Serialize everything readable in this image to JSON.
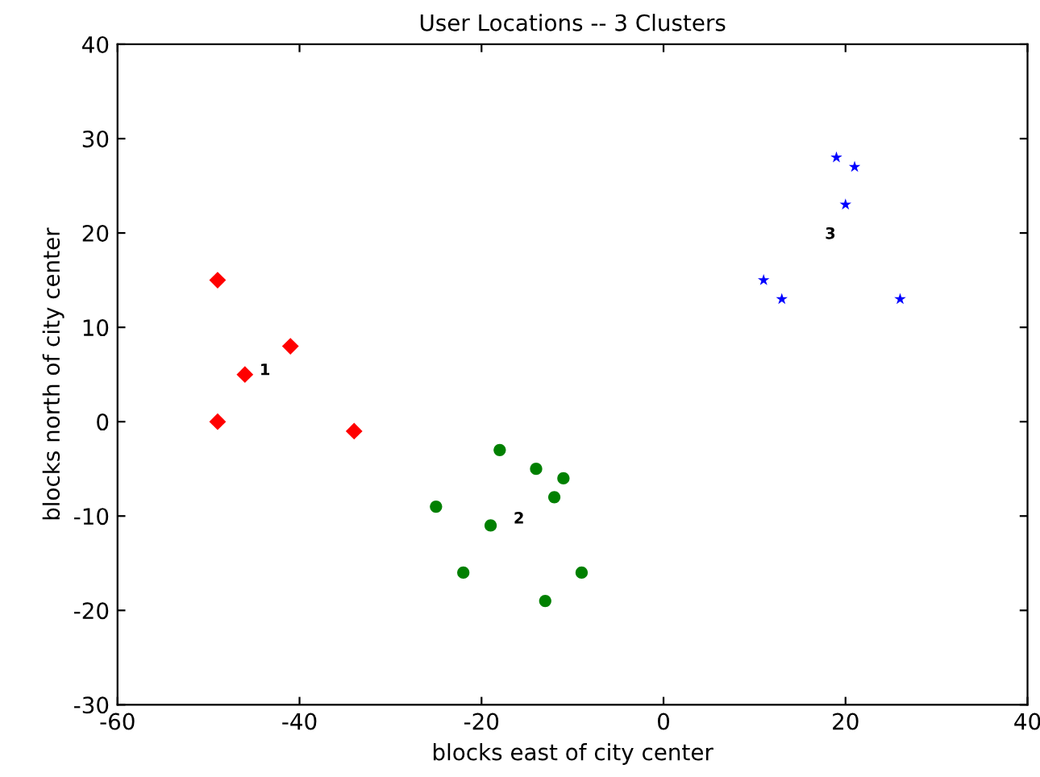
{
  "chart_data": {
    "type": "scatter",
    "title": "User Locations -- 3 Clusters",
    "xlabel": "blocks east of city center",
    "ylabel": "blocks north of city center",
    "xlim": [
      -60,
      40
    ],
    "xticks": [
      -60,
      -40,
      -20,
      0,
      20,
      40
    ],
    "ylim": [
      -30,
      40
    ],
    "yticks": [
      -30,
      -20,
      -10,
      0,
      10,
      20,
      30,
      40
    ],
    "grid": false,
    "legend": false,
    "series": [
      {
        "color": "#ff0000",
        "marker": "diamond",
        "x": [
          -49,
          -46,
          -41,
          -49,
          -34
        ],
        "values": [
          15,
          5,
          8,
          0,
          -1
        ]
      },
      {
        "color": "#008000",
        "marker": "circle",
        "x": [
          -18,
          -14,
          -11,
          -12,
          -25,
          -19,
          -22,
          -9,
          -13
        ],
        "values": [
          -3,
          -5,
          -6,
          -8,
          -9,
          -11,
          -16,
          -16,
          -19
        ]
      },
      {
        "color": "#0000ff",
        "marker": "star",
        "x": [
          19,
          21,
          20,
          11,
          13,
          26
        ],
        "values": [
          28,
          27,
          23,
          15,
          13,
          13
        ]
      }
    ],
    "annotations": [
      "1",
      "2",
      "3"
    ]
  }
}
